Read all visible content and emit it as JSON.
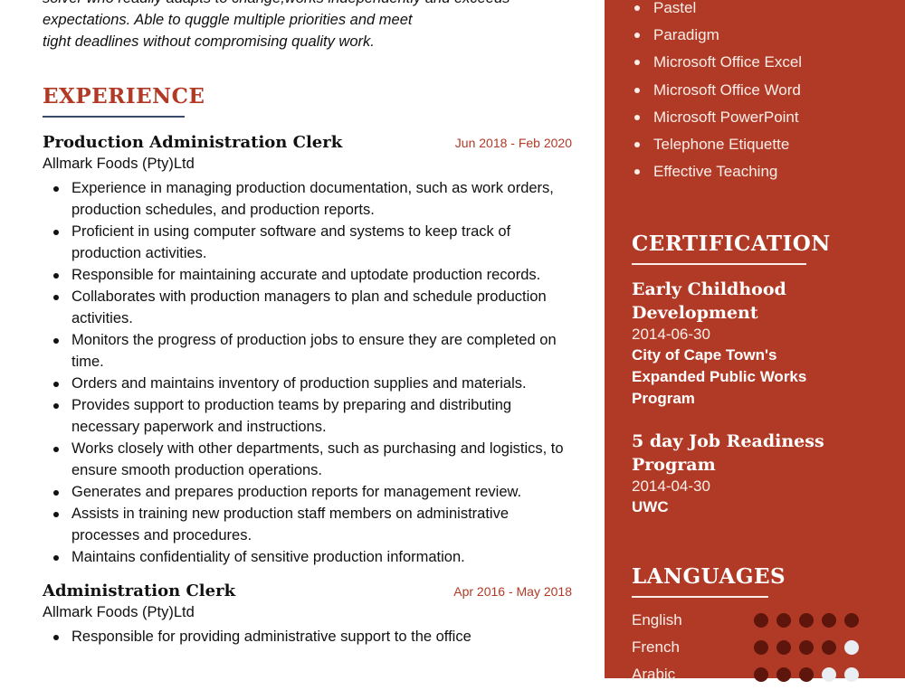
{
  "summary": {
    "lines": [
      "solver who readily adapts to change,works independently and exceeds",
      "expectations. Able to quggle multiple priorities and meet",
      "tight deadlines without compromising quality work."
    ]
  },
  "experience": {
    "heading": "EXPERIENCE",
    "jobs": [
      {
        "title": "Production Administration Clerk",
        "dates": "Jun 2018 - Feb 2020",
        "company": "Allmark Foods (Pty)Ltd",
        "bullets": [
          "Experience in managing production documentation, such as work orders, production schedules, and production reports.",
          "Proficient in using computer software and systems to keep track of production activities.",
          "Responsible for maintaining accurate and uptodate production records.",
          "Collaborates with production managers to plan and schedule production activities.",
          "Monitors the progress of production jobs to ensure they are completed on time.",
          "Orders and maintains inventory of production supplies and materials.",
          "Provides support to production teams by preparing and distributing necessary paperwork and instructions.",
          "Works closely with other departments, such as purchasing and logistics, to ensure smooth production operations.",
          "Generates and prepares production reports for management review.",
          "Assists in training new production staff members on administrative processes and procedures.",
          "Maintains confidentiality of sensitive production information."
        ]
      },
      {
        "title": "Administration Clerk",
        "dates": "Apr 2016 - May 2018",
        "company": "Allmark Foods (Pty)Ltd",
        "bullets": [
          "Responsible for providing administrative support to the office"
        ]
      }
    ]
  },
  "skills": [
    "Pastel",
    "Paradigm",
    "Microsoft Office Excel",
    "Microsoft Office Word",
    "Microsoft PowerPoint",
    "Telephone Etiquette",
    "Effective Teaching"
  ],
  "certification": {
    "heading": "CERTIFICATION",
    "items": [
      {
        "title": "Early Childhood Development",
        "date": "2014-06-30",
        "org": "City of Cape Town's Expanded Public Works Program"
      },
      {
        "title": "5 day Job Readiness Program",
        "date": "2014-04-30",
        "org": "UWC"
      }
    ]
  },
  "languages": {
    "heading": "LANGUAGES",
    "items": [
      {
        "name": "English",
        "level": 5
      },
      {
        "name": "French",
        "level": 4
      },
      {
        "name": "Arabic",
        "level": 3
      }
    ],
    "max": 5
  },
  "colors": {
    "accent": "#b13a26",
    "dot_filled": "#5e150c",
    "dot_empty": "#e8eef1"
  }
}
